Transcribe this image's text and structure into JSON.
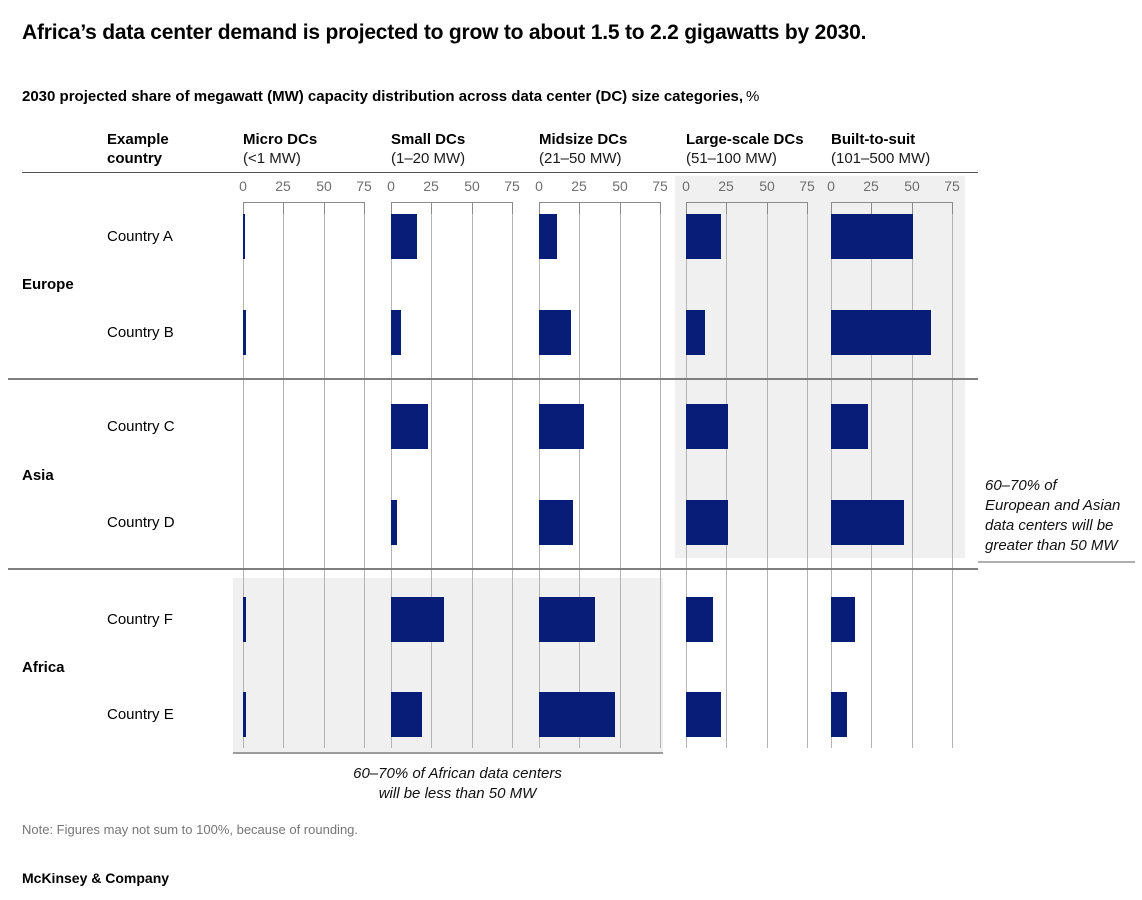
{
  "title": "Africa’s data center demand is projected to grow to about 1.5 to 2.2 gigawatts by 2030.",
  "subtitle": "2030 projected share of megawatt (MW) capacity distribution across data center (DC) size categories,",
  "subtitle_suffix": "%",
  "note": "Note: Figures may not sum to 100%, because of rounding.",
  "footer": "McKinsey & Company",
  "colors": {
    "bar": "#071d78",
    "grid": "#b4b4b4",
    "axis": "#8a8a8a",
    "axis_label": "#6e6e6e",
    "divider": "#7f7f7f",
    "header_line": "#515151",
    "highlight": "#f0f0f0",
    "panel_edge": "#9c9c9c",
    "annotation_rule": "#b0b0b0"
  },
  "chart_data": {
    "type": "bar",
    "unit": "%",
    "title": "2030 projected share of megawatt (MW) capacity distribution across data center (DC) size categories, %",
    "axis": {
      "ticks": [
        0,
        25,
        50,
        75
      ],
      "max": 75,
      "grid": true
    },
    "row_header": "Example country",
    "columns": [
      {
        "name": "Micro DCs",
        "range": "(<1 MW)"
      },
      {
        "name": "Small DCs",
        "range": "(1–20 MW)"
      },
      {
        "name": "Midsize DCs",
        "range": "(21–50 MW)"
      },
      {
        "name": "Large-scale DCs",
        "range": "(51–100 MW)"
      },
      {
        "name": "Built-to-suit",
        "range": "(101–500 MW)"
      }
    ],
    "regions": [
      {
        "name": "Europe",
        "rows": [
          {
            "country": "Country A",
            "values": [
              1,
              16,
              11,
              22,
              51
            ]
          },
          {
            "country": "Country B",
            "values": [
              2,
              6,
              20,
              12,
              62
            ]
          }
        ]
      },
      {
        "name": "Asia",
        "rows": [
          {
            "country": "Country C",
            "values": [
              0,
              23,
              28,
              26,
              23
            ]
          },
          {
            "country": "Country D",
            "values": [
              0,
              4,
              21,
              26,
              45
            ]
          }
        ]
      },
      {
        "name": "Africa",
        "rows": [
          {
            "country": "Country F",
            "values": [
              2,
              33,
              35,
              17,
              15
            ]
          },
          {
            "country": "Country E",
            "values": [
              2,
              19,
              47,
              22,
              10
            ]
          }
        ]
      }
    ],
    "annotations": {
      "right_lines": [
        "60–70% of",
        "European and Asian",
        "data centers will be",
        "greater than 50 MW"
      ],
      "bottom_lines": [
        "60–70% of African data centers",
        "will be less than 50 MW"
      ],
      "highlighted_columns_europe_asia": [
        "Large-scale DCs",
        "Built-to-suit"
      ],
      "highlighted_columns_africa": [
        "Micro DCs",
        "Small DCs",
        "Midsize DCs"
      ]
    }
  }
}
